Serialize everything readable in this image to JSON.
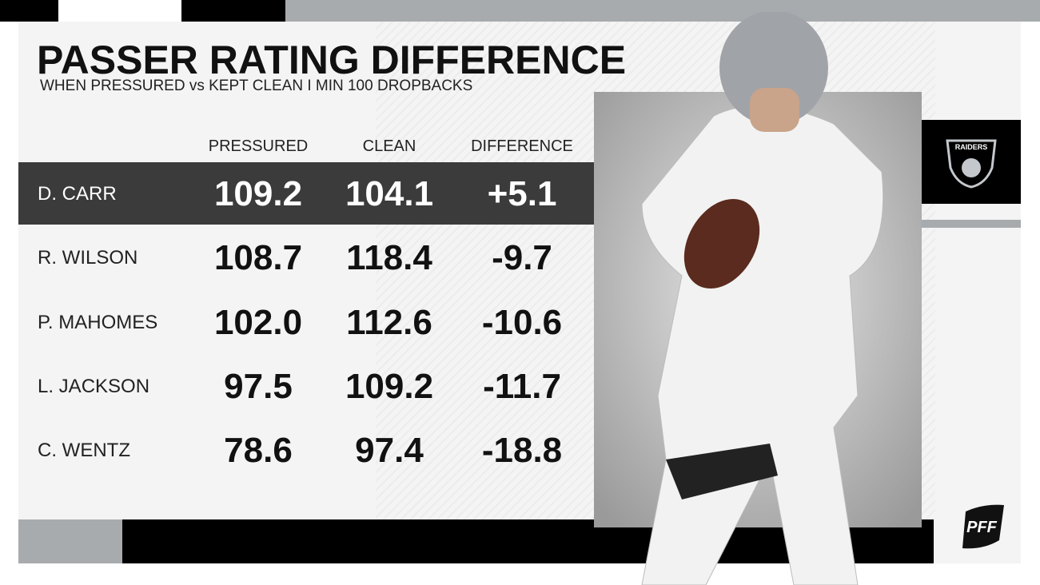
{
  "header": {
    "title": "PASSER RATING DIFFERENCE",
    "subtitle": "WHEN PRESSURED vs KEPT CLEAN I MIN 100 DROPBACKS"
  },
  "table": {
    "columns": [
      "PRESSURED",
      "CLEAN",
      "DIFFERENCE"
    ],
    "rows": [
      [
        "D. CARR",
        "109.2",
        "104.1",
        "+5.1"
      ],
      [
        "R. WILSON",
        "108.7",
        "118.4",
        "-9.7"
      ],
      [
        "P. MAHOMES",
        "102.0",
        "112.6",
        "-10.6"
      ],
      [
        "L. JACKSON",
        "97.5",
        "109.2",
        "-11.7"
      ],
      [
        "C. WENTZ",
        "78.6",
        "97.4",
        "-18.8"
      ]
    ]
  },
  "team_logo": "RAIDERS",
  "brand": "PFF"
}
